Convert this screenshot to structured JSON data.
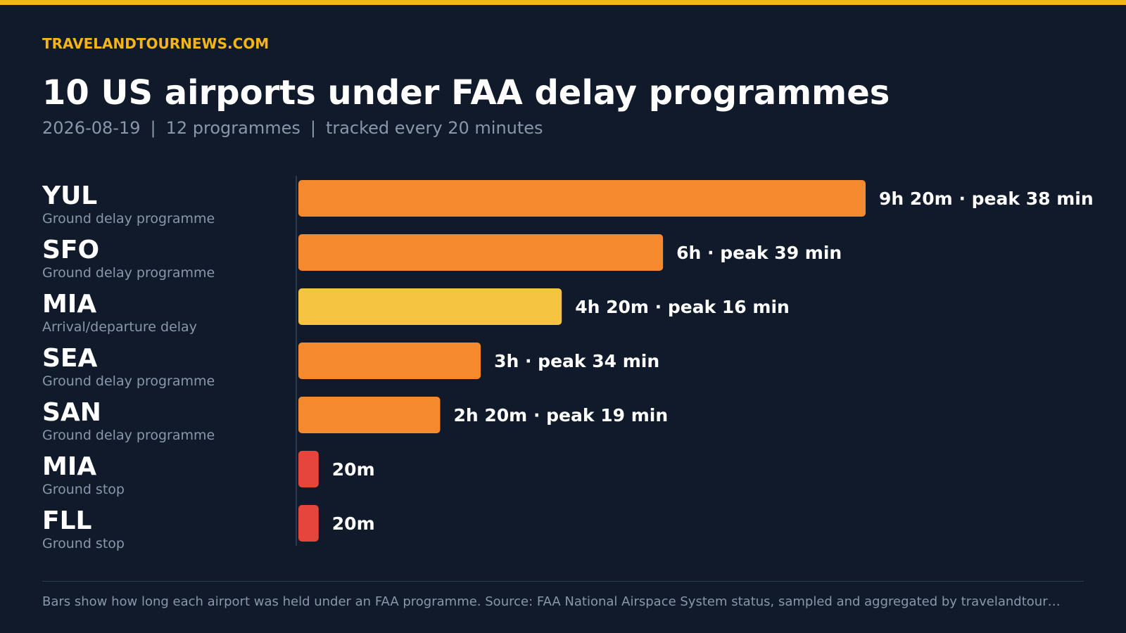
{
  "brand": "TRAVELANDTOURNEWS.COM",
  "title": "10 US airports under FAA delay programmes",
  "subtitle": {
    "date": "2026-08-19",
    "programmes": "12 programmes",
    "tracking": "tracked every 20 minutes",
    "separator": "|"
  },
  "colors": {
    "background": "#101a2b",
    "accent": "#f5b518",
    "ground_delay_programme": "#f5892e",
    "arrival_departure_delay": "#f5c542",
    "ground_stop": "#e5453a",
    "text": "#ffffff",
    "muted": "#8a97aa"
  },
  "chart_data": {
    "type": "bar",
    "orientation": "horizontal",
    "unit": "minutes",
    "xlim": [
      0,
      560
    ],
    "grid": false,
    "categories": [
      "YUL",
      "SFO",
      "MIA",
      "SEA",
      "SAN",
      "MIA",
      "FLL"
    ],
    "programme_types": [
      "Ground delay programme",
      "Ground delay programme",
      "Arrival/departure delay",
      "Ground delay programme",
      "Ground delay programme",
      "Ground stop",
      "Ground stop"
    ],
    "values": [
      560,
      360,
      260,
      180,
      140,
      20,
      20
    ],
    "duration_labels": [
      "9h 20m",
      "6h",
      "4h 20m",
      "3h",
      "2h 20m",
      "20m",
      "20m"
    ],
    "peak_labels": [
      "peak 38 min",
      "peak 39 min",
      "peak 16 min",
      "peak 34 min",
      "peak 19 min",
      "",
      ""
    ],
    "label_separator": "·"
  },
  "footer": "Bars show how long each airport was held under an FAA programme. Source: FAA National Airspace System status, sampled and aggregated by travelandtour…"
}
